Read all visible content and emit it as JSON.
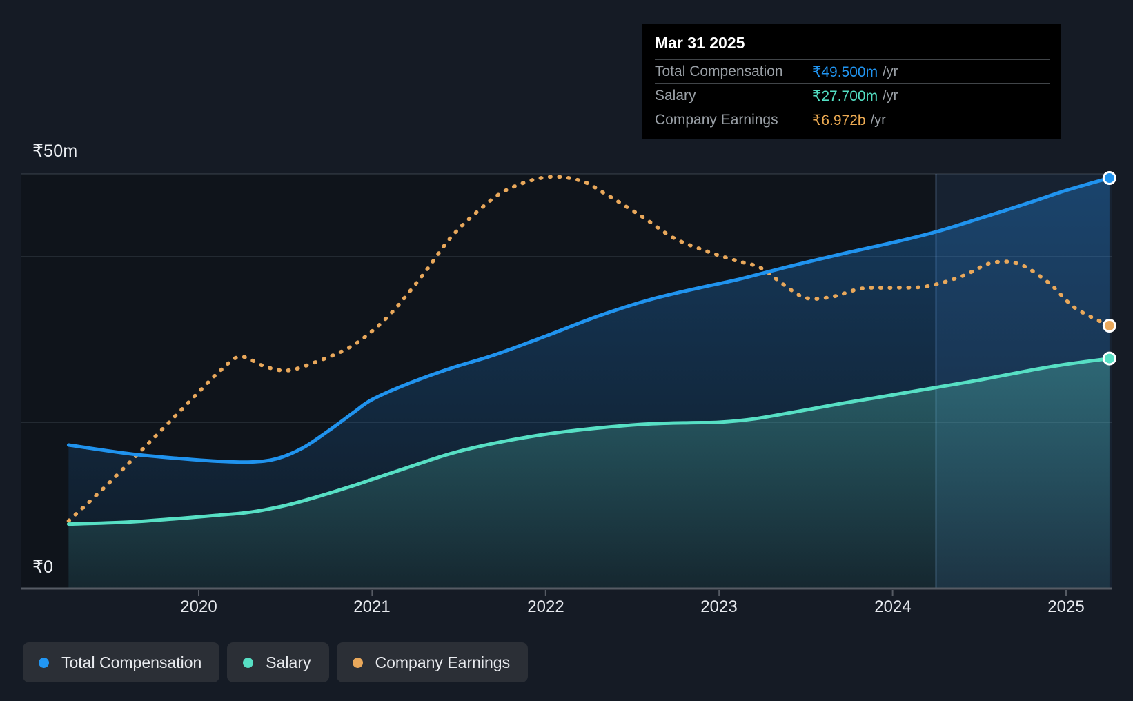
{
  "tooltip": {
    "date": "Mar 31 2025",
    "rows": [
      {
        "label": "Total Compensation",
        "value": "₹49.500m",
        "suffix": "/yr",
        "color": "#2196f3"
      },
      {
        "label": "Salary",
        "value": "₹27.700m",
        "suffix": "/yr",
        "color": "#53e0c4"
      },
      {
        "label": "Company Earnings",
        "value": "₹6.972b",
        "suffix": "/yr",
        "color": "#ecaa52"
      }
    ]
  },
  "y_axis": {
    "top_label": "₹50m",
    "bottom_label": "₹0"
  },
  "x_axis": {
    "years": [
      "2020",
      "2021",
      "2022",
      "2023",
      "2024",
      "2025"
    ]
  },
  "legend": [
    {
      "label": "Total Compensation",
      "color": "#2196f3"
    },
    {
      "label": "Salary",
      "color": "#57dfc4"
    },
    {
      "label": "Company Earnings",
      "color": "#e9a85b"
    }
  ],
  "colors": {
    "background": "#151b25",
    "tooltip_background": "#000000",
    "total_compensation_line": "#2093ee",
    "salary_line": "#57dfc4",
    "company_earnings_line": "#e9a85b",
    "gridline": "rgba(216,226,240,0.14)",
    "axis": "#565b64",
    "highlight_band": "rgba(95,155,225,0.11)"
  },
  "chart_data": {
    "type": "line",
    "title": "Executive compensation vs company earnings over time",
    "x_axis": {
      "min": 2019.25,
      "max": 2025.25,
      "ticks": [
        2020,
        2021,
        2022,
        2023,
        2024,
        2025
      ]
    },
    "y_axis_left": {
      "unit": "₹m",
      "min": 0,
      "max": 50,
      "gridline_values": [
        20,
        40,
        50
      ],
      "top_tick_label": "₹50m",
      "bottom_tick_label": "₹0"
    },
    "highlight_band": {
      "from": 2024.25,
      "to": 2025.25
    },
    "hover_point": {
      "date": "Mar 31 2025",
      "x": 2025.25
    },
    "series": [
      {
        "name": "Total Compensation",
        "unit": "₹m",
        "style": "solid-area",
        "points": [
          [
            2019.25,
            17.25
          ],
          [
            2019.6,
            16.2
          ],
          [
            2019.9,
            15.6
          ],
          [
            2020.1,
            15.3
          ],
          [
            2020.3,
            15.2
          ],
          [
            2020.45,
            15.6
          ],
          [
            2020.6,
            16.9
          ],
          [
            2020.75,
            19.0
          ],
          [
            2020.9,
            21.3
          ],
          [
            2021.0,
            22.75
          ],
          [
            2021.2,
            24.6
          ],
          [
            2021.45,
            26.5
          ],
          [
            2021.7,
            28.1
          ],
          [
            2022.0,
            30.4
          ],
          [
            2022.3,
            32.8
          ],
          [
            2022.6,
            34.8
          ],
          [
            2022.9,
            36.3
          ],
          [
            2023.1,
            37.2
          ],
          [
            2023.4,
            38.8
          ],
          [
            2023.7,
            40.3
          ],
          [
            2024.0,
            41.7
          ],
          [
            2024.25,
            43.0
          ],
          [
            2024.5,
            44.6
          ],
          [
            2024.8,
            46.6
          ],
          [
            2025.0,
            48.0
          ],
          [
            2025.25,
            49.5
          ]
        ]
      },
      {
        "name": "Salary",
        "unit": "₹m",
        "style": "solid-area",
        "points": [
          [
            2019.25,
            7.7
          ],
          [
            2019.6,
            7.95
          ],
          [
            2019.9,
            8.4
          ],
          [
            2020.1,
            8.75
          ],
          [
            2020.3,
            9.15
          ],
          [
            2020.5,
            9.95
          ],
          [
            2020.7,
            11.1
          ],
          [
            2020.9,
            12.4
          ],
          [
            2021.0,
            13.1
          ],
          [
            2021.2,
            14.5
          ],
          [
            2021.45,
            16.2
          ],
          [
            2021.7,
            17.45
          ],
          [
            2022.0,
            18.55
          ],
          [
            2022.3,
            19.3
          ],
          [
            2022.6,
            19.8
          ],
          [
            2022.85,
            19.95
          ],
          [
            2023.0,
            20.0
          ],
          [
            2023.2,
            20.4
          ],
          [
            2023.45,
            21.3
          ],
          [
            2023.7,
            22.25
          ],
          [
            2024.0,
            23.3
          ],
          [
            2024.25,
            24.2
          ],
          [
            2024.5,
            25.1
          ],
          [
            2024.8,
            26.3
          ],
          [
            2025.0,
            27.0
          ],
          [
            2025.25,
            27.7
          ]
        ]
      },
      {
        "name": "Company Earnings",
        "unit": "₹b",
        "style": "dotted",
        "points": [
          [
            2019.25,
            1.78
          ],
          [
            2019.45,
            2.64
          ],
          [
            2019.66,
            3.61
          ],
          [
            2019.85,
            4.5
          ],
          [
            2020.0,
            5.21
          ],
          [
            2020.13,
            5.8
          ],
          [
            2020.24,
            6.15
          ],
          [
            2020.38,
            5.89
          ],
          [
            2020.51,
            5.78
          ],
          [
            2020.66,
            5.98
          ],
          [
            2020.86,
            6.37
          ],
          [
            2021.0,
            6.83
          ],
          [
            2021.13,
            7.41
          ],
          [
            2021.3,
            8.37
          ],
          [
            2021.45,
            9.3
          ],
          [
            2021.6,
            9.98
          ],
          [
            2021.77,
            10.57
          ],
          [
            2022.0,
            10.92
          ],
          [
            2022.2,
            10.83
          ],
          [
            2022.35,
            10.46
          ],
          [
            2022.55,
            9.89
          ],
          [
            2022.74,
            9.3
          ],
          [
            2022.93,
            8.95
          ],
          [
            2023.1,
            8.7
          ],
          [
            2023.24,
            8.51
          ],
          [
            2023.37,
            8.07
          ],
          [
            2023.5,
            7.71
          ],
          [
            2023.65,
            7.74
          ],
          [
            2023.82,
            7.96
          ],
          [
            2024.0,
            7.98
          ],
          [
            2024.2,
            8.02
          ],
          [
            2024.4,
            8.29
          ],
          [
            2024.57,
            8.64
          ],
          [
            2024.73,
            8.61
          ],
          [
            2024.9,
            8.11
          ],
          [
            2025.05,
            7.45
          ],
          [
            2025.25,
            6.972
          ]
        ]
      }
    ],
    "end_labels": {
      "total_compensation": "₹49.500m /yr",
      "salary": "₹27.700m /yr",
      "company_earnings": "₹6.972b /yr"
    }
  }
}
